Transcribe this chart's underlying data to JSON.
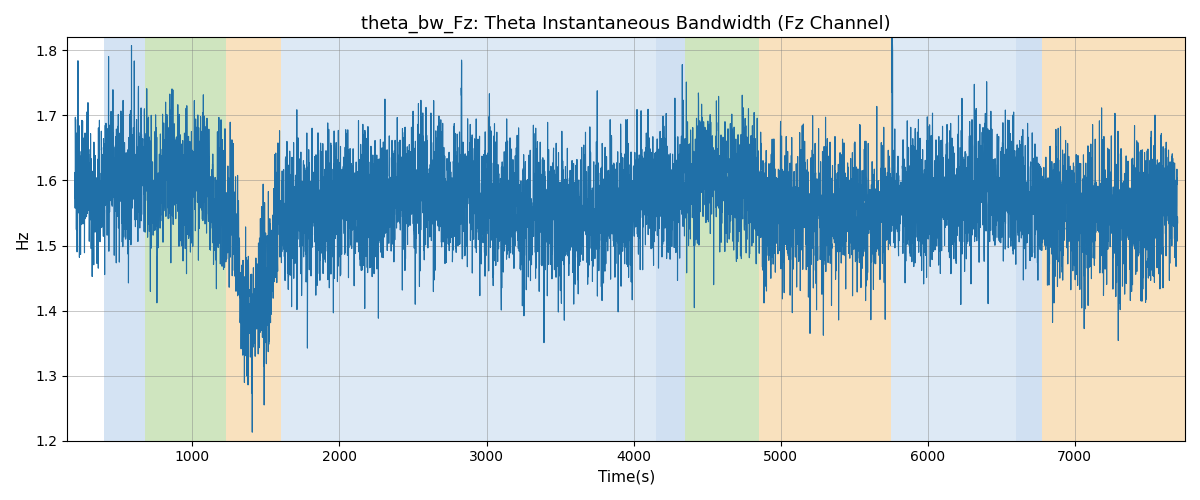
{
  "title": "theta_bw_Fz: Theta Instantaneous Bandwidth (Fz Channel)",
  "xlabel": "Time(s)",
  "ylabel": "Hz",
  "xlim": [
    150,
    7750
  ],
  "ylim": [
    1.2,
    1.82
  ],
  "line_color": "#2070a8",
  "line_width": 0.8,
  "bg_bands": [
    {
      "xmin": 400,
      "xmax": 680,
      "color": "#aac8e8",
      "alpha": 0.5
    },
    {
      "xmin": 680,
      "xmax": 1230,
      "color": "#a0cc80",
      "alpha": 0.5
    },
    {
      "xmin": 1230,
      "xmax": 1600,
      "color": "#f5c98a",
      "alpha": 0.55
    },
    {
      "xmin": 1600,
      "xmax": 4150,
      "color": "#aac8e8",
      "alpha": 0.4
    },
    {
      "xmin": 4150,
      "xmax": 4350,
      "color": "#aac8e8",
      "alpha": 0.55
    },
    {
      "xmin": 4350,
      "xmax": 4850,
      "color": "#a0cc80",
      "alpha": 0.5
    },
    {
      "xmin": 4850,
      "xmax": 5750,
      "color": "#f5c98a",
      "alpha": 0.55
    },
    {
      "xmin": 5750,
      "xmax": 6600,
      "color": "#aac8e8",
      "alpha": 0.4
    },
    {
      "xmin": 6600,
      "xmax": 6780,
      "color": "#aac8e8",
      "alpha": 0.55
    },
    {
      "xmin": 6780,
      "xmax": 7750,
      "color": "#f5c98a",
      "alpha": 0.55
    }
  ],
  "seed": 12345,
  "n_points": 7600,
  "title_fontsize": 13,
  "tick_fontsize": 10,
  "label_fontsize": 11
}
